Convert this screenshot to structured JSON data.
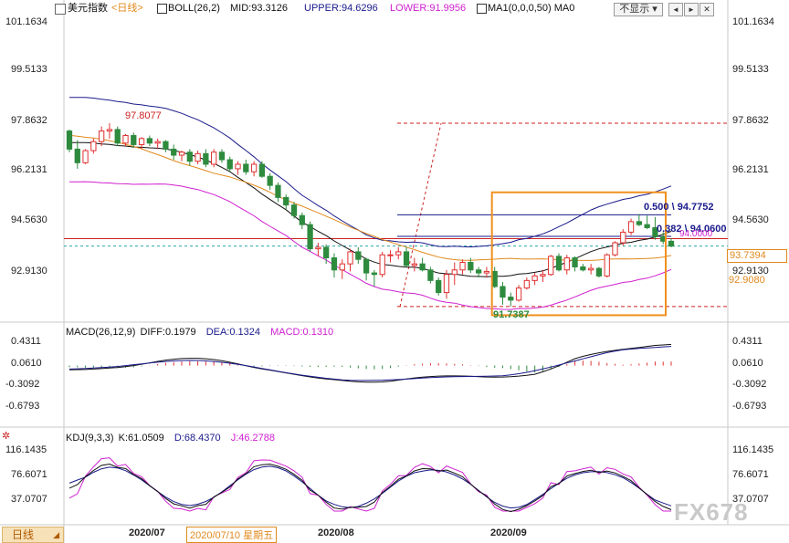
{
  "header": {
    "symbol": "美元指数",
    "period": "<日线>",
    "boll_label": "BOLL(26,2)",
    "boll_mid": "MID:93.3126",
    "boll_upper": "UPPER:94.6296",
    "boll_lower": "LOWER:91.9956",
    "ma_label": "MA1(0,0,0,50) MA0",
    "hide_button": "不显示",
    "prev_button": "◄",
    "next_button": "►",
    "close_button": "✕"
  },
  "main_axis": {
    "ticks": [
      "101.1634",
      "99.5133",
      "97.8632",
      "96.2131",
      "94.5630",
      "92.9130"
    ],
    "current_price": "93.7394",
    "ma_value": "92.9080"
  },
  "annotations": {
    "high_label": "97.8077",
    "low_label": "91.7387",
    "fib_a": "0.500",
    "fib_a_value": "94.7752",
    "fib_b": "0.382",
    "fib_b_value": "94.0600",
    "fib_c_value": "94.0000"
  },
  "macd": {
    "label": "MACD(26,12,9)",
    "diff": "DIFF:0.1979",
    "dea": "DEA:0.1324",
    "macd": "MACD:0.1310",
    "ticks": [
      "0.4311",
      "0.0610",
      "-0.3092",
      "-0.6793"
    ]
  },
  "kdj": {
    "label": "KDJ(9,3,3)",
    "k": "K:61.0509",
    "d": "D:68.4370",
    "j": "J:46.2788",
    "ticks": [
      "116.1435",
      "76.6071",
      "37.0707"
    ]
  },
  "xaxis": {
    "period_tab": "日线",
    "labels": [
      "2020/07",
      "2020/08",
      "2020/09"
    ],
    "cursor_date": "2020/07/10 星期五"
  },
  "watermark": "FX678",
  "colors": {
    "up": "#e03030",
    "down": "#2e8b3e",
    "boll_mid": "#111111",
    "boll_upper": "#1a1a8c",
    "boll_lower": "#d020d0",
    "ma50": "#e08a1e",
    "fib_line": "#1a1a8c",
    "hline": "#cc2222",
    "box": "#f0901e"
  },
  "chart_data": {
    "type": "candlestick",
    "y_range": [
      91.3,
      101.2
    ],
    "dates": [
      "2020-06-15",
      "2020-06-16",
      "2020-06-17",
      "2020-06-18",
      "2020-06-19",
      "2020-06-22",
      "2020-06-23",
      "2020-06-24",
      "2020-06-25",
      "2020-06-26",
      "2020-06-29",
      "2020-06-30",
      "2020-07-01",
      "2020-07-02",
      "2020-07-03",
      "2020-07-06",
      "2020-07-07",
      "2020-07-08",
      "2020-07-09",
      "2020-07-10",
      "2020-07-13",
      "2020-07-14",
      "2020-07-15",
      "2020-07-16",
      "2020-07-17",
      "2020-07-20",
      "2020-07-21",
      "2020-07-22",
      "2020-07-23",
      "2020-07-24",
      "2020-07-27",
      "2020-07-28",
      "2020-07-29",
      "2020-07-30",
      "2020-07-31",
      "2020-08-03",
      "2020-08-04",
      "2020-08-05",
      "2020-08-06",
      "2020-08-07",
      "2020-08-10",
      "2020-08-11",
      "2020-08-12",
      "2020-08-13",
      "2020-08-14",
      "2020-08-17",
      "2020-08-18",
      "2020-08-19",
      "2020-08-20",
      "2020-08-21",
      "2020-08-24",
      "2020-08-25",
      "2020-08-26",
      "2020-08-27",
      "2020-08-28",
      "2020-08-31",
      "2020-09-01",
      "2020-09-02",
      "2020-09-03",
      "2020-09-04",
      "2020-09-07",
      "2020-09-08",
      "2020-09-09",
      "2020-09-10",
      "2020-09-11",
      "2020-09-14",
      "2020-09-15",
      "2020-09-16",
      "2020-09-17",
      "2020-09-18",
      "2020-09-21",
      "2020-09-22",
      "2020-09-23",
      "2020-09-24",
      "2020-09-25",
      "2020-09-28"
    ],
    "ohlc": [
      [
        97.55,
        97.6,
        96.85,
        96.95
      ],
      [
        96.95,
        97.25,
        96.3,
        96.5
      ],
      [
        96.5,
        96.95,
        96.45,
        96.9
      ],
      [
        96.9,
        97.3,
        96.8,
        97.2
      ],
      [
        97.2,
        97.7,
        97.05,
        97.55
      ],
      [
        97.55,
        97.81,
        97.3,
        97.6
      ],
      [
        97.6,
        97.7,
        97.05,
        97.15
      ],
      [
        97.15,
        97.45,
        97.05,
        97.4
      ],
      [
        97.4,
        97.5,
        97.0,
        97.1
      ],
      [
        97.1,
        97.35,
        96.95,
        97.3
      ],
      [
        97.3,
        97.4,
        97.05,
        97.15
      ],
      [
        97.15,
        97.3,
        96.95,
        97.2
      ],
      [
        97.2,
        97.25,
        96.85,
        96.95
      ],
      [
        96.95,
        97.1,
        96.6,
        96.75
      ],
      [
        96.75,
        96.9,
        96.55,
        96.85
      ],
      [
        96.85,
        96.95,
        96.4,
        96.55
      ],
      [
        96.55,
        96.9,
        96.45,
        96.8
      ],
      [
        96.8,
        96.95,
        96.35,
        96.45
      ],
      [
        96.45,
        96.95,
        96.35,
        96.85
      ],
      [
        96.85,
        96.95,
        96.5,
        96.6
      ],
      [
        96.6,
        96.7,
        96.2,
        96.3
      ],
      [
        96.3,
        96.55,
        96.1,
        96.45
      ],
      [
        96.45,
        96.6,
        96.1,
        96.2
      ],
      [
        96.2,
        96.55,
        96.05,
        96.45
      ],
      [
        96.45,
        96.55,
        96.0,
        96.05
      ],
      [
        96.05,
        96.15,
        95.6,
        95.75
      ],
      [
        95.75,
        95.85,
        95.2,
        95.35
      ],
      [
        95.35,
        95.45,
        94.95,
        95.1
      ],
      [
        95.1,
        95.2,
        94.65,
        94.75
      ],
      [
        94.75,
        94.85,
        94.3,
        94.45
      ],
      [
        94.45,
        94.55,
        93.55,
        93.65
      ],
      [
        93.65,
        93.85,
        93.4,
        93.7
      ],
      [
        93.7,
        93.8,
        93.15,
        93.35
      ],
      [
        93.35,
        93.5,
        92.7,
        92.95
      ],
      [
        92.95,
        93.3,
        92.65,
        93.15
      ],
      [
        93.15,
        93.65,
        92.9,
        93.55
      ],
      [
        93.55,
        93.7,
        93.15,
        93.3
      ],
      [
        93.3,
        93.35,
        92.6,
        92.85
      ],
      [
        92.85,
        92.95,
        92.4,
        92.8
      ],
      [
        92.8,
        93.55,
        92.7,
        93.45
      ],
      [
        93.45,
        93.6,
        93.2,
        93.45
      ],
      [
        93.45,
        93.7,
        93.3,
        93.55
      ],
      [
        93.55,
        93.7,
        93.05,
        93.1
      ],
      [
        93.1,
        93.35,
        92.9,
        93.15
      ],
      [
        93.15,
        93.35,
        92.9,
        92.95
      ],
      [
        92.95,
        93.05,
        92.5,
        92.6
      ],
      [
        92.6,
        92.7,
        92.1,
        92.2
      ],
      [
        92.2,
        92.95,
        92.0,
        92.8
      ],
      [
        92.8,
        93.2,
        92.45,
        92.95
      ],
      [
        92.95,
        93.3,
        92.8,
        93.2
      ],
      [
        93.2,
        93.35,
        92.85,
        92.95
      ],
      [
        92.95,
        93.05,
        92.7,
        92.85
      ],
      [
        92.85,
        93.05,
        92.7,
        92.9
      ],
      [
        92.9,
        93.05,
        92.35,
        92.4
      ],
      [
        92.4,
        92.55,
        91.8,
        92.05
      ],
      [
        92.05,
        92.2,
        91.74,
        91.95
      ],
      [
        91.95,
        92.45,
        91.9,
        92.35
      ],
      [
        92.35,
        92.7,
        92.3,
        92.6
      ],
      [
        92.6,
        92.85,
        92.45,
        92.75
      ],
      [
        92.75,
        92.95,
        92.55,
        92.8
      ],
      [
        92.8,
        93.45,
        92.75,
        93.4
      ],
      [
        93.4,
        93.5,
        92.9,
        92.95
      ],
      [
        92.95,
        93.45,
        92.8,
        93.35
      ],
      [
        93.35,
        93.4,
        92.9,
        93.05
      ],
      [
        93.05,
        93.15,
        92.9,
        92.95
      ],
      [
        92.95,
        93.15,
        92.8,
        93.0
      ],
      [
        93.0,
        93.05,
        92.7,
        92.75
      ],
      [
        92.75,
        93.5,
        92.7,
        93.45
      ],
      [
        93.45,
        93.9,
        93.4,
        93.85
      ],
      [
        93.85,
        94.3,
        93.75,
        94.2
      ],
      [
        94.2,
        94.65,
        94.1,
        94.55
      ],
      [
        94.55,
        94.8,
        94.4,
        94.45
      ],
      [
        94.45,
        94.75,
        94.3,
        94.35
      ],
      [
        94.35,
        94.7,
        93.95,
        94.05
      ],
      [
        94.05,
        94.2,
        93.8,
        93.9
      ],
      [
        93.9,
        94.0,
        93.7,
        93.74
      ]
    ],
    "indicators": {
      "boll": {
        "period": 26,
        "k": 2,
        "mid": 93.3126,
        "upper": 94.6296,
        "lower": 91.9956
      },
      "ma50_last": 92.908,
      "macd": {
        "fast": 26,
        "slow": 12,
        "signal": 9,
        "diff": 0.1979,
        "dea": 0.1324,
        "macd": 0.131,
        "ylim": [
          -0.9,
          0.55
        ]
      },
      "kdj": {
        "n": 9,
        "m1": 3,
        "m2": 3,
        "k": 61.0509,
        "d": 68.437,
        "j": 46.2788,
        "ylim": [
          0,
          125
        ]
      }
    },
    "levels": {
      "high": 97.8077,
      "low": 91.7387,
      "fib_0500": 94.7752,
      "fib_0382": 94.06,
      "line_94": 94.0,
      "last": 93.7394
    }
  }
}
